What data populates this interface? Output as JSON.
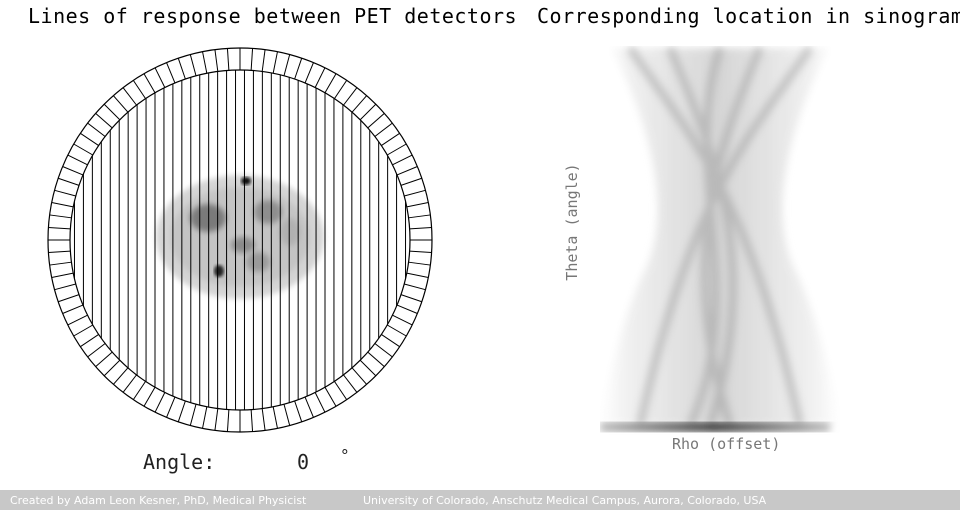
{
  "left_panel": {
    "title": "Lines of response between PET detectors",
    "angle_caption": "Angle:",
    "angle_value": "0",
    "angle_unit": "°"
  },
  "right_panel": {
    "title": "Corresponding location in sinogram",
    "y_axis_label": "Theta (angle)",
    "x_axis_label": "Rho (offset)"
  },
  "footer": {
    "credit": "Created by Adam Leon Kesner, PhD, Medical Physicist",
    "institution": "University of Colorado, Anschutz Medical Campus, Aurora, Colorado, USA"
  },
  "detector_ring": {
    "detector_count": 96,
    "lines_of_response": 38,
    "angle_degrees": 0
  },
  "colors": {
    "line": "#000000",
    "footer_bg": "#c8c8c8",
    "axis_label": "#777777"
  }
}
